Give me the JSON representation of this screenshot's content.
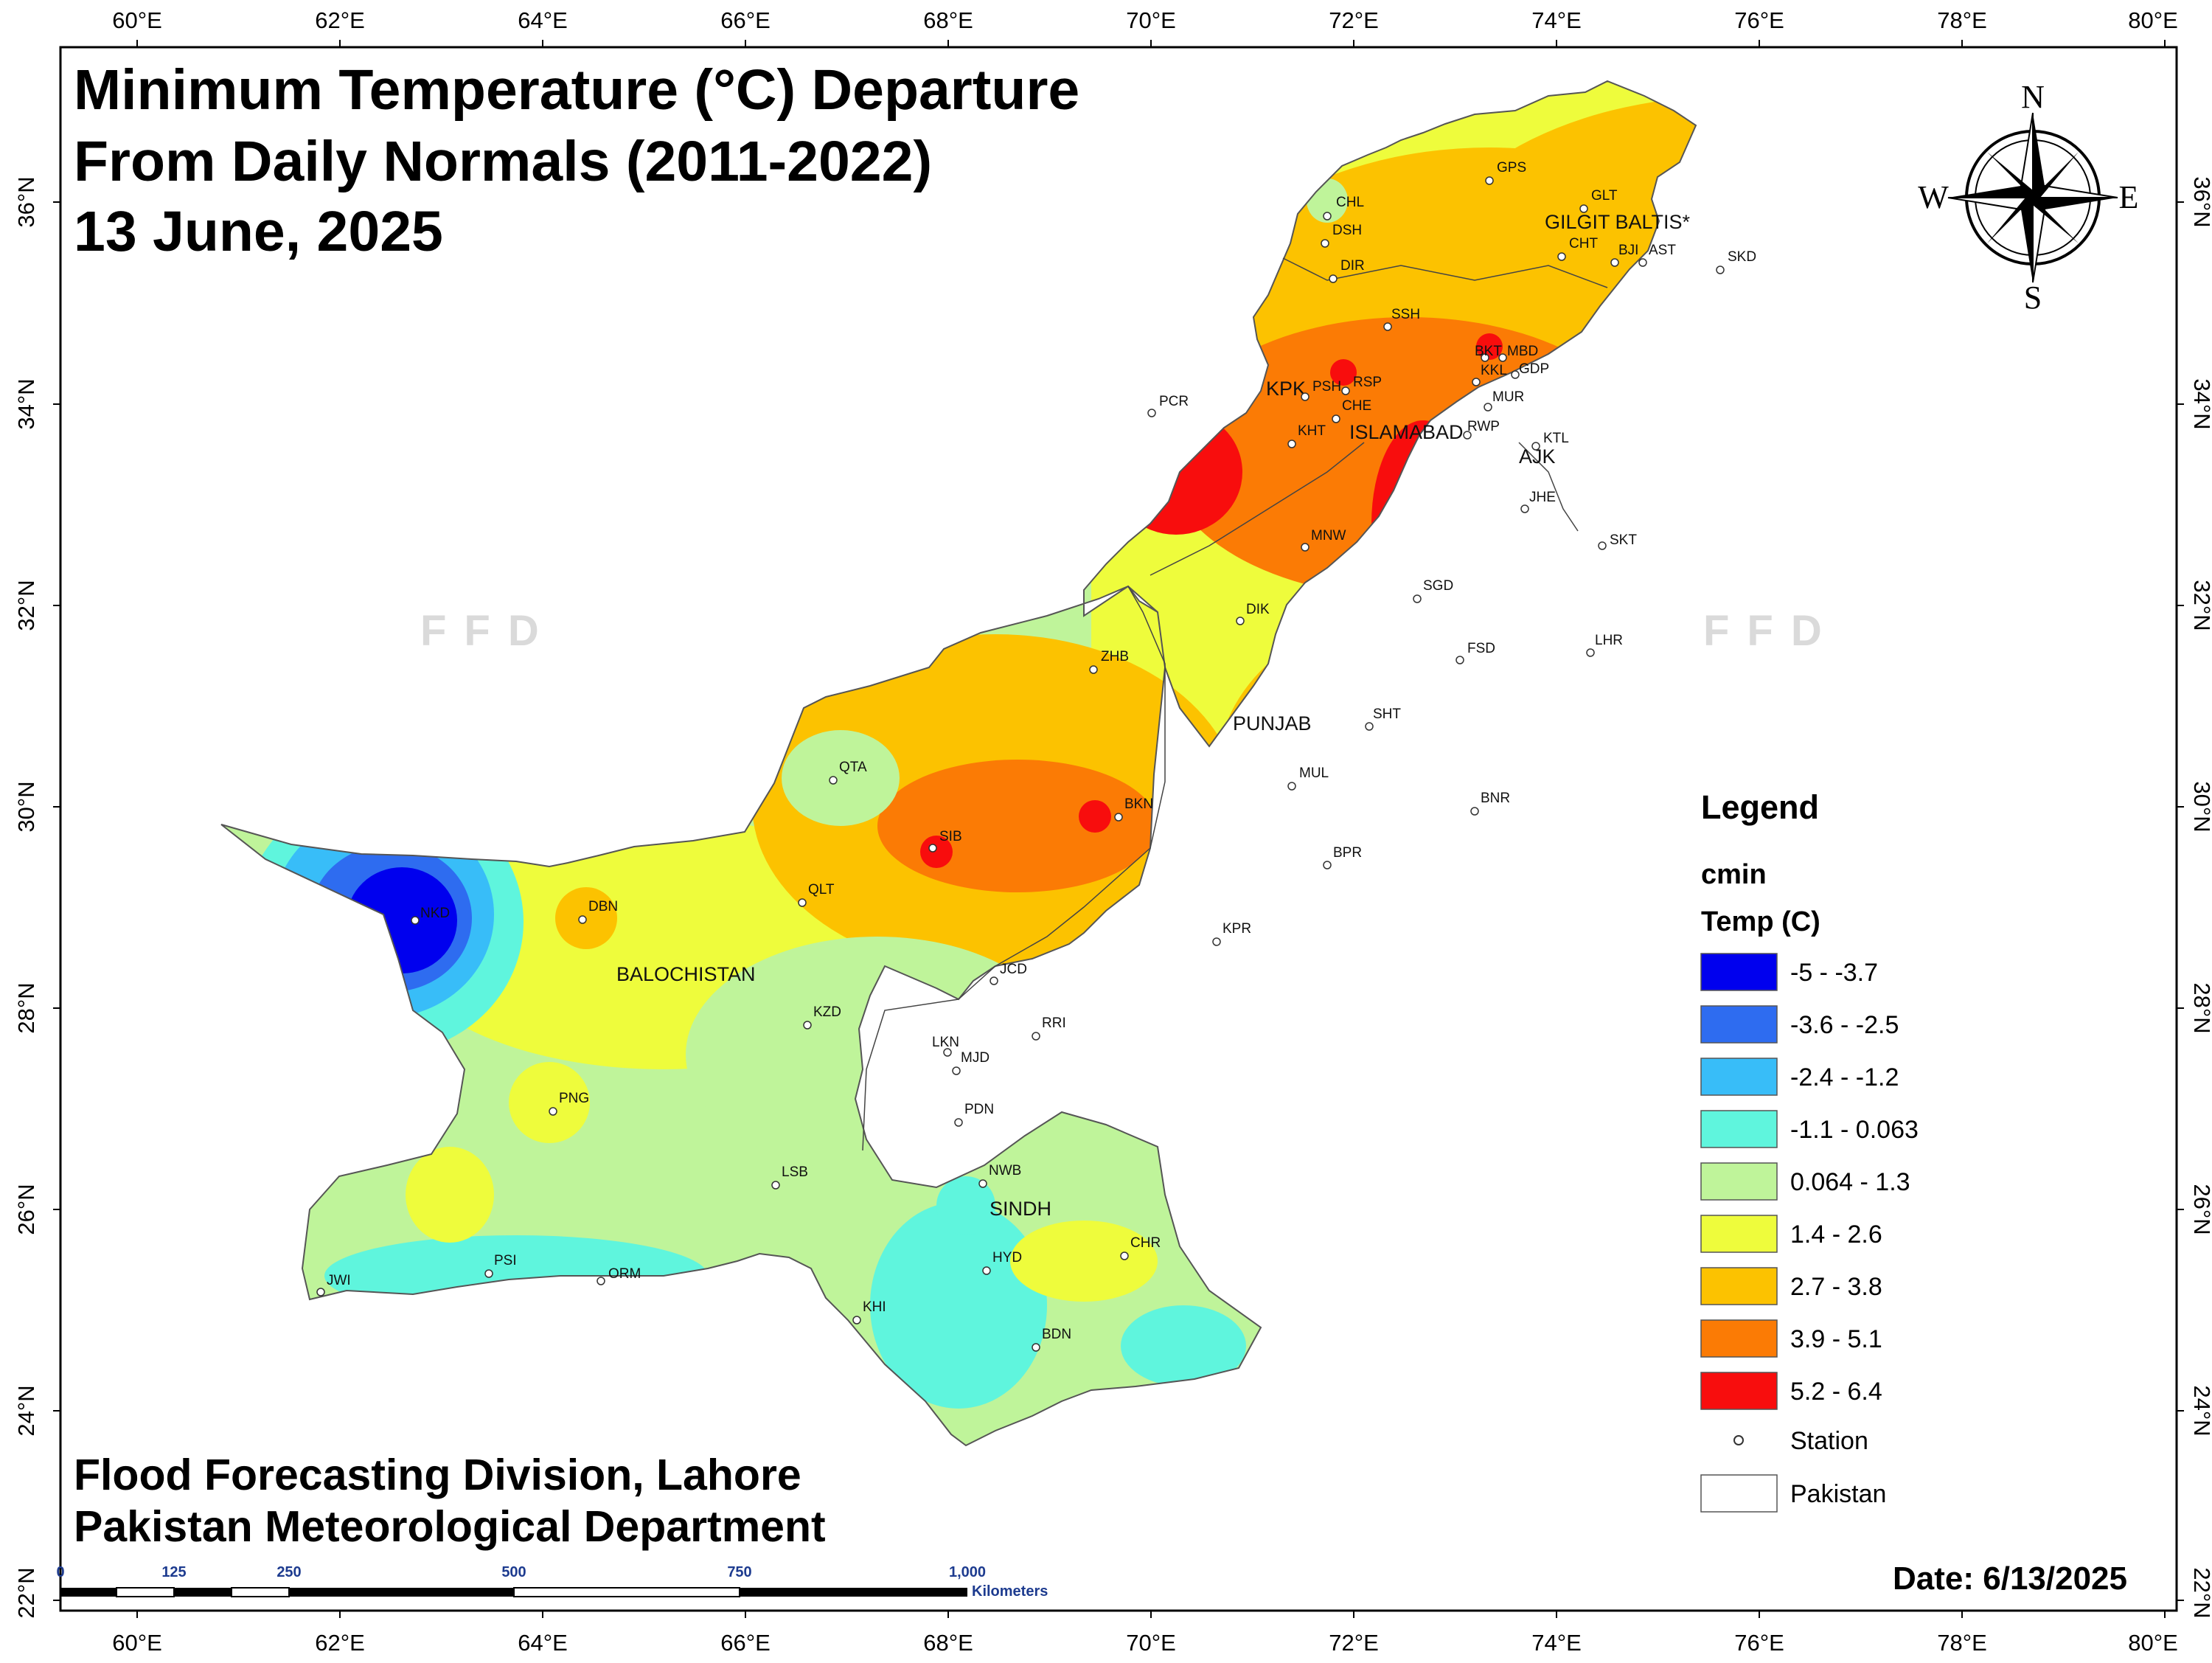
{
  "title": {
    "line1": "Minimum Temperature (°C) Departure",
    "line2": "From Daily Normals (2011-2022)",
    "line3": "13 June, 2025"
  },
  "credits": {
    "line1": "Flood Forecasting Division, Lahore",
    "line2": "Pakistan Meteorological Department"
  },
  "date_label": "Date: 6/13/2025",
  "watermark": "FFD",
  "axes": {
    "lon_ticks": [
      "60°E",
      "62°E",
      "64°E",
      "66°E",
      "68°E",
      "70°E",
      "72°E",
      "74°E",
      "76°E",
      "78°E",
      "80°E"
    ],
    "lat_ticks": [
      "36°N",
      "34°N",
      "32°N",
      "30°N",
      "28°N",
      "26°N",
      "24°N",
      "22°N"
    ]
  },
  "compass": {
    "n": "N",
    "s": "S",
    "e": "E",
    "w": "W"
  },
  "legend": {
    "title": "Legend",
    "variable": "cmin",
    "unit_label": "Temp (C)",
    "classes": [
      {
        "label": "-5 - -3.7",
        "color": "#0000ee"
      },
      {
        "label": "-3.6 - -2.5",
        "color": "#2e6cf0"
      },
      {
        "label": "-2.4 - -1.2",
        "color": "#38bdf8"
      },
      {
        "label": "-1.1 - 0.063",
        "color": "#5ff5dd"
      },
      {
        "label": "0.064 - 1.3",
        "color": "#bff49a"
      },
      {
        "label": "1.4 - 2.6",
        "color": "#eefc3c"
      },
      {
        "label": "2.7 - 3.8",
        "color": "#fcc200"
      },
      {
        "label": "3.9 - 5.1",
        "color": "#fb7b05"
      },
      {
        "label": "5.2 - 6.4",
        "color": "#f80d0d"
      }
    ],
    "station_label": "Station",
    "pakistan_label": "Pakistan"
  },
  "scale_bar": {
    "numbers": [
      "0",
      "125",
      "250",
      "500",
      "750",
      "1,000"
    ],
    "unit": "Kilometers"
  },
  "regions": [
    "GILGIT BALTIS*",
    "KPK",
    "ISLAMABAD",
    "AJK",
    "PUNJAB",
    "BALOCHISTAN",
    "SINDH"
  ],
  "stations": [
    "CHL",
    "DSH",
    "DIR",
    "GPS",
    "GLT",
    "CHT",
    "BJI",
    "AST",
    "SKD",
    "SSH",
    "BKT",
    "MBD",
    "GDP",
    "KKL",
    "PCR",
    "PSH",
    "RSP",
    "CHE",
    "MUR",
    "RWP",
    "KHT",
    "KTL",
    "JHE",
    "MNW",
    "SKT",
    "SGD",
    "DIK",
    "ZHB",
    "FSD",
    "LHR",
    "SHT",
    "QTA",
    "MUL",
    "BKN",
    "BNR",
    "SIB",
    "BPR",
    "QLT",
    "DBN",
    "NKD",
    "KPR",
    "JCD",
    "KZD",
    "RRI",
    "LKN",
    "MJD",
    "PNG",
    "PDN",
    "LSB",
    "NWB",
    "HYD",
    "CHR",
    "PSI",
    "ORM",
    "JWI",
    "KHI",
    "BDN"
  ]
}
